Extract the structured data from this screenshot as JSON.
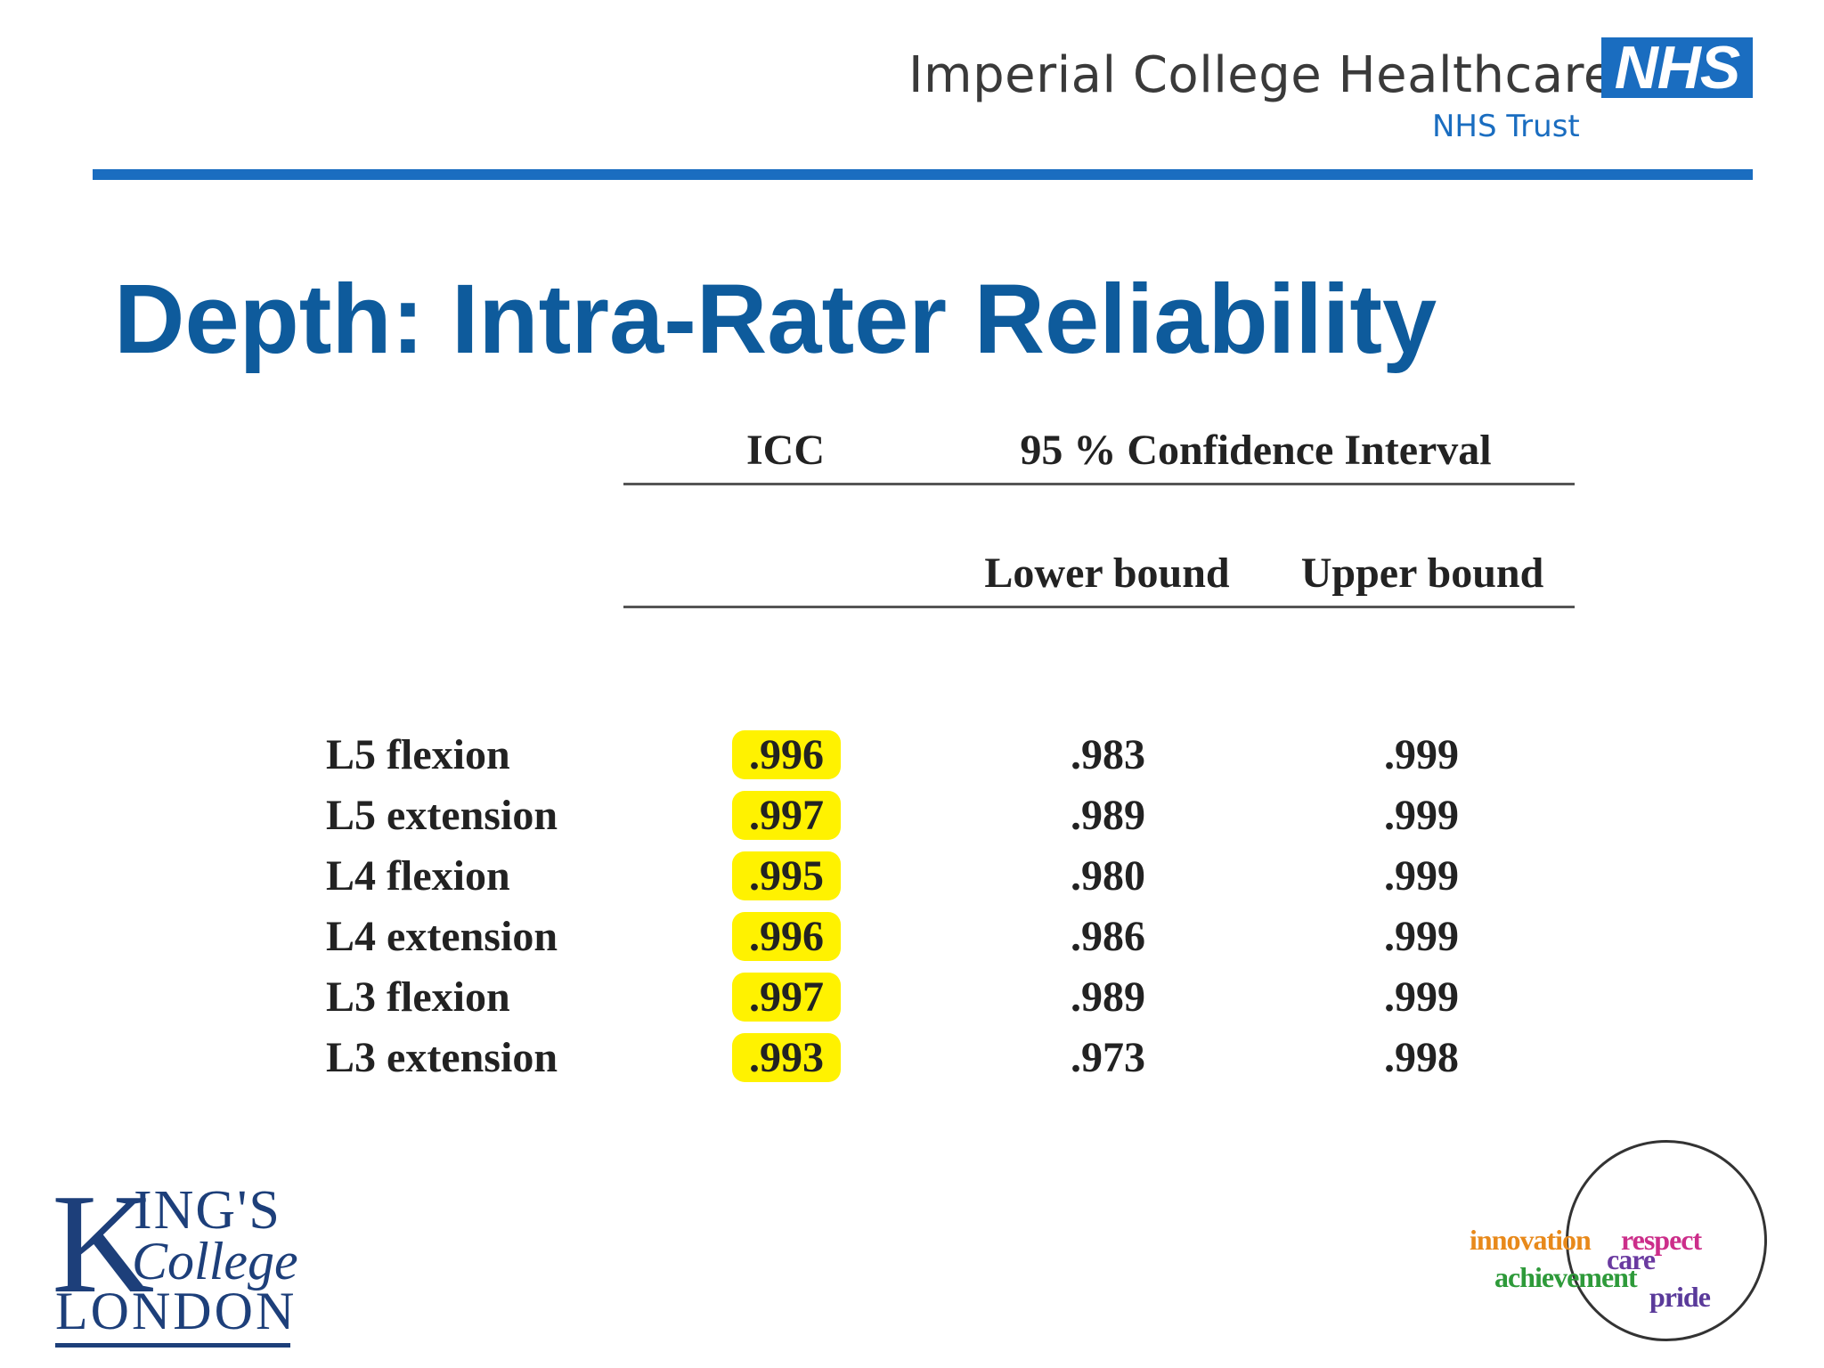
{
  "header": {
    "org_name": "Imperial College Healthcare",
    "nhs_logo": "NHS",
    "trust_name": "NHS Trust",
    "accent_color": "#1a6dc0"
  },
  "title": "Depth: Intra-Rater Reliability",
  "table": {
    "col_icc": "ICC",
    "col_ci": "95 % Confidence Interval",
    "col_lower": "Lower bound",
    "col_upper": "Upper bound",
    "rows": [
      {
        "label": "L5 flexion",
        "icc": ".996",
        "lower": ".983",
        "upper": ".999"
      },
      {
        "label": "L5 extension",
        "icc": ".997",
        "lower": ".989",
        "upper": ".999"
      },
      {
        "label": "L4 flexion",
        "icc": ".995",
        "lower": ".980",
        "upper": ".999"
      },
      {
        "label": "L4 extension",
        "icc": ".996",
        "lower": ".986",
        "upper": ".999"
      },
      {
        "label": "L3 flexion",
        "icc": ".997",
        "lower": ".989",
        "upper": ".999"
      },
      {
        "label": "L3 extension",
        "icc": ".993",
        "lower": ".973",
        "upper": ".998"
      }
    ],
    "highlight_color": "#fff200"
  },
  "footer": {
    "kcl_k": "K",
    "kcl_ings": "ING'S",
    "kcl_college": "College",
    "kcl_london": "LONDON",
    "values": {
      "innovation": "innovation",
      "respect": "respect",
      "care": "care",
      "achievement": "achievement",
      "pride": "pride"
    }
  }
}
